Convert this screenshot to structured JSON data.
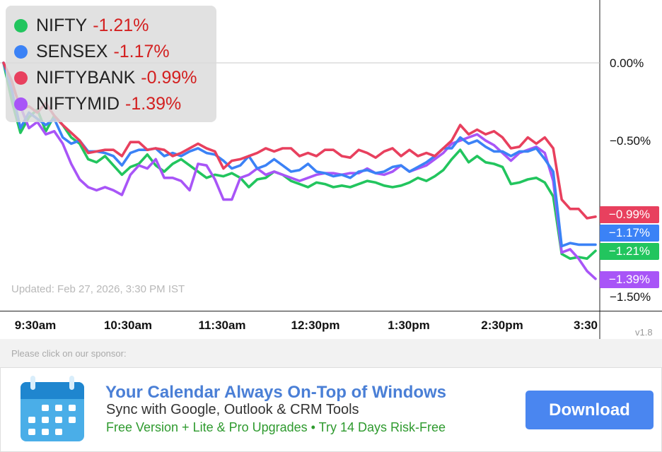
{
  "chart_data": {
    "type": "line",
    "x_unit": "minutes since 9:15am",
    "x_ticks": [
      "9:30am",
      "10:30am",
      "11:30am",
      "12:30pm",
      "1:30pm",
      "2:30pm",
      "3:30"
    ],
    "y_ticks": [
      "0.00%",
      "−0.50%",
      "−1.50%"
    ],
    "ylim": [
      -1.5,
      0.0
    ],
    "series": [
      {
        "name": "NIFTY",
        "change": "-1.21%",
        "end_label": "−1.21%",
        "color": "#22c55e",
        "points": [
          [
            0,
            0.0
          ],
          [
            5,
            -0.25
          ],
          [
            10,
            -0.45
          ],
          [
            15,
            -0.35
          ],
          [
            20,
            -0.3
          ],
          [
            25,
            -0.44
          ],
          [
            30,
            -0.34
          ],
          [
            35,
            -0.4
          ],
          [
            40,
            -0.48
          ],
          [
            45,
            -0.52
          ],
          [
            50,
            -0.62
          ],
          [
            55,
            -0.64
          ],
          [
            60,
            -0.6
          ],
          [
            65,
            -0.66
          ],
          [
            70,
            -0.72
          ],
          [
            75,
            -0.67
          ],
          [
            80,
            -0.65
          ],
          [
            85,
            -0.59
          ],
          [
            90,
            -0.66
          ],
          [
            95,
            -0.7
          ],
          [
            100,
            -0.65
          ],
          [
            105,
            -0.62
          ],
          [
            110,
            -0.66
          ],
          [
            115,
            -0.7
          ],
          [
            120,
            -0.74
          ],
          [
            125,
            -0.72
          ],
          [
            130,
            -0.73
          ],
          [
            135,
            -0.71
          ],
          [
            140,
            -0.74
          ],
          [
            145,
            -0.8
          ],
          [
            150,
            -0.75
          ],
          [
            155,
            -0.74
          ],
          [
            160,
            -0.7
          ],
          [
            165,
            -0.72
          ],
          [
            170,
            -0.76
          ],
          [
            175,
            -0.78
          ],
          [
            180,
            -0.8
          ],
          [
            185,
            -0.77
          ],
          [
            190,
            -0.78
          ],
          [
            195,
            -0.8
          ],
          [
            200,
            -0.79
          ],
          [
            205,
            -0.8
          ],
          [
            210,
            -0.78
          ],
          [
            215,
            -0.76
          ],
          [
            220,
            -0.77
          ],
          [
            225,
            -0.79
          ],
          [
            230,
            -0.8
          ],
          [
            235,
            -0.79
          ],
          [
            240,
            -0.77
          ],
          [
            245,
            -0.74
          ],
          [
            250,
            -0.76
          ],
          [
            255,
            -0.73
          ],
          [
            260,
            -0.69
          ],
          [
            265,
            -0.62
          ],
          [
            270,
            -0.56
          ],
          [
            275,
            -0.64
          ],
          [
            280,
            -0.6
          ],
          [
            285,
            -0.64
          ],
          [
            290,
            -0.65
          ],
          [
            295,
            -0.67
          ],
          [
            300,
            -0.78
          ],
          [
            305,
            -0.77
          ],
          [
            310,
            -0.75
          ],
          [
            315,
            -0.74
          ],
          [
            320,
            -0.77
          ],
          [
            325,
            -0.86
          ],
          [
            330,
            -1.23
          ],
          [
            335,
            -1.26
          ],
          [
            340,
            -1.25
          ],
          [
            345,
            -1.26
          ],
          [
            350,
            -1.21
          ]
        ]
      },
      {
        "name": "SENSEX",
        "change": "-1.17%",
        "end_label": "−1.17%",
        "color": "#3b82f6",
        "points": [
          [
            0,
            0.0
          ],
          [
            5,
            -0.18
          ],
          [
            10,
            -0.42
          ],
          [
            15,
            -0.32
          ],
          [
            20,
            -0.36
          ],
          [
            25,
            -0.4
          ],
          [
            30,
            -0.36
          ],
          [
            35,
            -0.48
          ],
          [
            40,
            -0.52
          ],
          [
            45,
            -0.5
          ],
          [
            50,
            -0.57
          ],
          [
            55,
            -0.57
          ],
          [
            60,
            -0.58
          ],
          [
            65,
            -0.6
          ],
          [
            70,
            -0.66
          ],
          [
            75,
            -0.58
          ],
          [
            80,
            -0.56
          ],
          [
            85,
            -0.56
          ],
          [
            90,
            -0.55
          ],
          [
            95,
            -0.6
          ],
          [
            100,
            -0.58
          ],
          [
            105,
            -0.6
          ],
          [
            110,
            -0.57
          ],
          [
            115,
            -0.55
          ],
          [
            120,
            -0.58
          ],
          [
            125,
            -0.59
          ],
          [
            130,
            -0.63
          ],
          [
            135,
            -0.68
          ],
          [
            140,
            -0.66
          ],
          [
            145,
            -0.6
          ],
          [
            150,
            -0.68
          ],
          [
            155,
            -0.66
          ],
          [
            160,
            -0.62
          ],
          [
            165,
            -0.66
          ],
          [
            170,
            -0.7
          ],
          [
            175,
            -0.69
          ],
          [
            180,
            -0.65
          ],
          [
            185,
            -0.7
          ],
          [
            190,
            -0.71
          ],
          [
            195,
            -0.73
          ],
          [
            200,
            -0.72
          ],
          [
            205,
            -0.74
          ],
          [
            210,
            -0.7
          ],
          [
            215,
            -0.69
          ],
          [
            220,
            -0.71
          ],
          [
            225,
            -0.7
          ],
          [
            230,
            -0.67
          ],
          [
            235,
            -0.66
          ],
          [
            240,
            -0.7
          ],
          [
            245,
            -0.67
          ],
          [
            250,
            -0.64
          ],
          [
            255,
            -0.6
          ],
          [
            260,
            -0.55
          ],
          [
            265,
            -0.55
          ],
          [
            270,
            -0.48
          ],
          [
            275,
            -0.52
          ],
          [
            280,
            -0.5
          ],
          [
            285,
            -0.54
          ],
          [
            290,
            -0.57
          ],
          [
            295,
            -0.57
          ],
          [
            300,
            -0.6
          ],
          [
            305,
            -0.57
          ],
          [
            310,
            -0.57
          ],
          [
            315,
            -0.55
          ],
          [
            320,
            -0.62
          ],
          [
            325,
            -0.7
          ],
          [
            330,
            -1.18
          ],
          [
            335,
            -1.16
          ],
          [
            340,
            -1.17
          ],
          [
            345,
            -1.17
          ],
          [
            350,
            -1.17
          ]
        ]
      },
      {
        "name": "NIFTYBANK",
        "change": "-0.99%",
        "end_label": "−0.99%",
        "color": "#e8405e",
        "points": [
          [
            0,
            0.0
          ],
          [
            5,
            -0.12
          ],
          [
            10,
            -0.3
          ],
          [
            15,
            -0.28
          ],
          [
            20,
            -0.32
          ],
          [
            25,
            -0.26
          ],
          [
            30,
            -0.34
          ],
          [
            35,
            -0.4
          ],
          [
            40,
            -0.45
          ],
          [
            45,
            -0.5
          ],
          [
            50,
            -0.58
          ],
          [
            55,
            -0.57
          ],
          [
            60,
            -0.56
          ],
          [
            65,
            -0.56
          ],
          [
            70,
            -0.6
          ],
          [
            75,
            -0.51
          ],
          [
            80,
            -0.51
          ],
          [
            85,
            -0.56
          ],
          [
            90,
            -0.55
          ],
          [
            95,
            -0.56
          ],
          [
            100,
            -0.6
          ],
          [
            105,
            -0.58
          ],
          [
            110,
            -0.55
          ],
          [
            115,
            -0.52
          ],
          [
            120,
            -0.55
          ],
          [
            125,
            -0.57
          ],
          [
            130,
            -0.68
          ],
          [
            135,
            -0.63
          ],
          [
            140,
            -0.62
          ],
          [
            145,
            -0.6
          ],
          [
            150,
            -0.58
          ],
          [
            155,
            -0.55
          ],
          [
            160,
            -0.57
          ],
          [
            165,
            -0.55
          ],
          [
            170,
            -0.55
          ],
          [
            175,
            -0.6
          ],
          [
            180,
            -0.58
          ],
          [
            185,
            -0.6
          ],
          [
            190,
            -0.56
          ],
          [
            195,
            -0.56
          ],
          [
            200,
            -0.6
          ],
          [
            205,
            -0.61
          ],
          [
            210,
            -0.56
          ],
          [
            215,
            -0.58
          ],
          [
            220,
            -0.61
          ],
          [
            225,
            -0.57
          ],
          [
            230,
            -0.55
          ],
          [
            235,
            -0.6
          ],
          [
            240,
            -0.56
          ],
          [
            245,
            -0.6
          ],
          [
            250,
            -0.58
          ],
          [
            255,
            -0.6
          ],
          [
            260,
            -0.55
          ],
          [
            265,
            -0.5
          ],
          [
            270,
            -0.4
          ],
          [
            275,
            -0.46
          ],
          [
            280,
            -0.43
          ],
          [
            285,
            -0.46
          ],
          [
            290,
            -0.44
          ],
          [
            295,
            -0.48
          ],
          [
            300,
            -0.55
          ],
          [
            305,
            -0.54
          ],
          [
            310,
            -0.48
          ],
          [
            315,
            -0.52
          ],
          [
            320,
            -0.48
          ],
          [
            325,
            -0.55
          ],
          [
            330,
            -0.88
          ],
          [
            335,
            -0.94
          ],
          [
            340,
            -0.94
          ],
          [
            345,
            -1.0
          ],
          [
            350,
            -0.99
          ]
        ]
      },
      {
        "name": "NIFTYMID",
        "change": "-1.39%",
        "end_label": "−1.39%",
        "color": "#a855f7",
        "points": [
          [
            0,
            0.0
          ],
          [
            5,
            -0.14
          ],
          [
            10,
            -0.28
          ],
          [
            15,
            -0.42
          ],
          [
            20,
            -0.38
          ],
          [
            25,
            -0.46
          ],
          [
            30,
            -0.44
          ],
          [
            35,
            -0.52
          ],
          [
            40,
            -0.65
          ],
          [
            45,
            -0.75
          ],
          [
            50,
            -0.8
          ],
          [
            55,
            -0.82
          ],
          [
            60,
            -0.8
          ],
          [
            65,
            -0.82
          ],
          [
            70,
            -0.85
          ],
          [
            75,
            -0.72
          ],
          [
            80,
            -0.66
          ],
          [
            85,
            -0.68
          ],
          [
            90,
            -0.62
          ],
          [
            95,
            -0.74
          ],
          [
            100,
            -0.74
          ],
          [
            105,
            -0.76
          ],
          [
            110,
            -0.82
          ],
          [
            115,
            -0.65
          ],
          [
            120,
            -0.66
          ],
          [
            125,
            -0.75
          ],
          [
            130,
            -0.88
          ],
          [
            135,
            -0.88
          ],
          [
            140,
            -0.74
          ],
          [
            145,
            -0.72
          ],
          [
            150,
            -0.68
          ],
          [
            155,
            -0.72
          ],
          [
            160,
            -0.7
          ],
          [
            165,
            -0.72
          ],
          [
            170,
            -0.74
          ],
          [
            175,
            -0.76
          ],
          [
            180,
            -0.74
          ],
          [
            185,
            -0.72
          ],
          [
            190,
            -0.71
          ],
          [
            195,
            -0.71
          ],
          [
            200,
            -0.72
          ],
          [
            205,
            -0.71
          ],
          [
            210,
            -0.71
          ],
          [
            215,
            -0.68
          ],
          [
            220,
            -0.71
          ],
          [
            225,
            -0.72
          ],
          [
            230,
            -0.7
          ],
          [
            235,
            -0.66
          ],
          [
            240,
            -0.7
          ],
          [
            245,
            -0.68
          ],
          [
            250,
            -0.66
          ],
          [
            255,
            -0.62
          ],
          [
            260,
            -0.58
          ],
          [
            265,
            -0.52
          ],
          [
            270,
            -0.5
          ],
          [
            275,
            -0.48
          ],
          [
            280,
            -0.46
          ],
          [
            285,
            -0.5
          ],
          [
            290,
            -0.53
          ],
          [
            295,
            -0.58
          ],
          [
            300,
            -0.63
          ],
          [
            305,
            -0.58
          ],
          [
            310,
            -0.56
          ],
          [
            315,
            -0.54
          ],
          [
            320,
            -0.58
          ],
          [
            325,
            -0.76
          ],
          [
            330,
            -1.22
          ],
          [
            335,
            -1.2
          ],
          [
            340,
            -1.26
          ],
          [
            345,
            -1.34
          ],
          [
            350,
            -1.39
          ]
        ]
      }
    ],
    "baseline": 0.0,
    "grid": false,
    "legend": "top-left"
  },
  "updated_text": "Updated: Feb 27, 2026, 3:30 PM IST",
  "version_text": "v1.8",
  "ad": {
    "sponsor_prompt": "Please click on our sponsor:",
    "headline": "Your Calendar Always On-Top of Windows",
    "subline": "Sync with Google, Outlook & CRM Tools",
    "offer": "Free Version + Lite & Pro Upgrades • Try 14 Days Risk-Free",
    "button_label": "Download",
    "icon": "calendar-icon",
    "button_color": "#4a86f0"
  }
}
